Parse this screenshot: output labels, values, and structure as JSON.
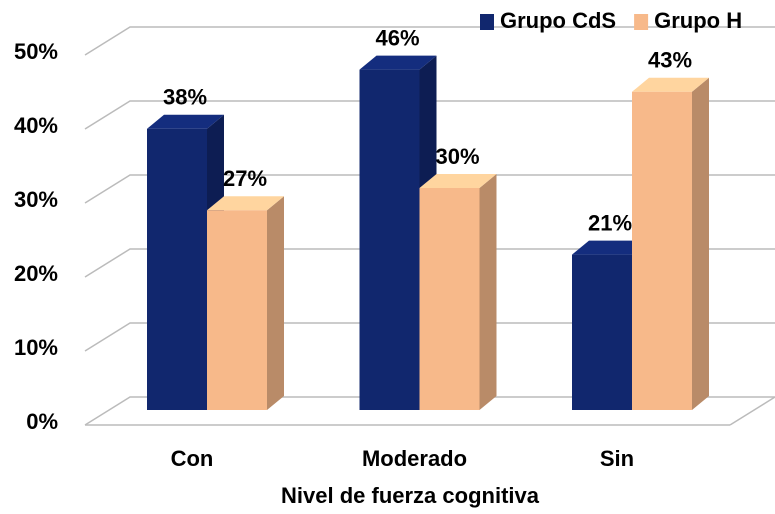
{
  "chart_data": {
    "type": "bar3d",
    "x_label": "Nivel de fuerza cognitiva",
    "categories": [
      "Con",
      "Moderado",
      "Sin"
    ],
    "series": [
      {
        "name": "Grupo CdS",
        "color": "#11276e",
        "values": [
          38,
          46,
          21
        ],
        "value_labels": [
          "38%",
          "46%",
          "21%"
        ]
      },
      {
        "name": "Grupo H",
        "color": "#f7b98a",
        "values": [
          27,
          30,
          43
        ],
        "value_labels": [
          "27%",
          "30%",
          "43%"
        ]
      }
    ],
    "ylim": [
      0,
      50
    ],
    "yticks": [
      {
        "value": 0,
        "label": "0%"
      },
      {
        "value": 10,
        "label": "10%"
      },
      {
        "value": 20,
        "label": "20%"
      },
      {
        "value": 30,
        "label": "30%"
      },
      {
        "value": 40,
        "label": "40%"
      },
      {
        "value": 50,
        "label": "50%"
      }
    ],
    "grid": true,
    "legend": "top-right"
  }
}
